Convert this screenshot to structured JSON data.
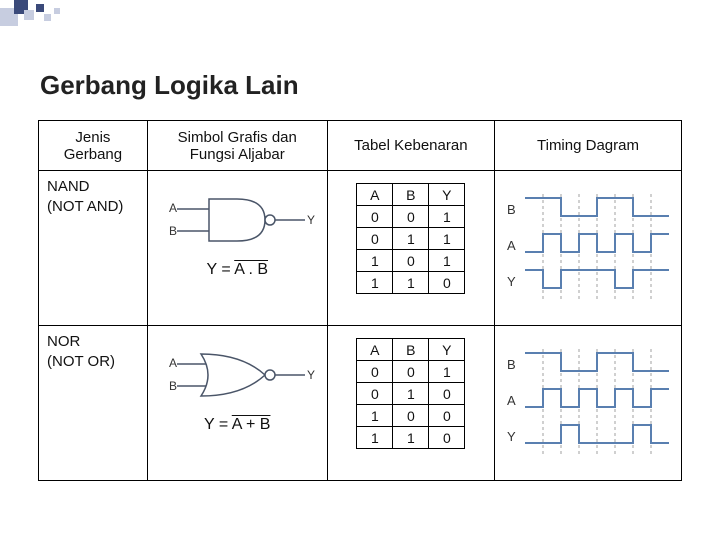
{
  "title": "Gerbang Logika Lain",
  "columns": {
    "jenis": "Jenis Gerbang",
    "simbol": "Simbol Grafis dan Fungsi Aljabar",
    "tabel": "Tabel Kebenaran",
    "timing": "Timing Dagram"
  },
  "rows": [
    {
      "name": "NAND",
      "subname": "(NOT AND)",
      "gate_shape": "nand",
      "formula_lhs": "Y = ",
      "formula_overline": "A . B",
      "input_labels": [
        "A",
        "B"
      ],
      "output_label": "Y",
      "truth": {
        "headers": [
          "A",
          "B",
          "Y"
        ],
        "rows": [
          [
            "0",
            "0",
            "1"
          ],
          [
            "0",
            "1",
            "1"
          ],
          [
            "1",
            "0",
            "1"
          ],
          [
            "1",
            "1",
            "0"
          ]
        ]
      },
      "timing": {
        "signals": [
          "B",
          "A",
          "Y"
        ],
        "line_color": "#597fb0",
        "dash_color": "#a0a0a0",
        "waveforms": {
          "B": [
            1,
            1,
            0,
            0,
            1,
            1,
            0,
            0
          ],
          "A": [
            0,
            1,
            0,
            1,
            0,
            1,
            0,
            1
          ],
          "Y": [
            1,
            0,
            1,
            1,
            1,
            0,
            1,
            1
          ]
        }
      }
    },
    {
      "name": "NOR",
      "subname": "(NOT OR)",
      "gate_shape": "nor",
      "formula_lhs": "Y = ",
      "formula_overline": "A + B",
      "input_labels": [
        "A",
        "B"
      ],
      "output_label": "Y",
      "truth": {
        "headers": [
          "A",
          "B",
          "Y"
        ],
        "rows": [
          [
            "0",
            "0",
            "1"
          ],
          [
            "0",
            "1",
            "0"
          ],
          [
            "1",
            "0",
            "0"
          ],
          [
            "1",
            "1",
            "0"
          ]
        ]
      },
      "timing": {
        "signals": [
          "B",
          "A",
          "Y"
        ],
        "line_color": "#597fb0",
        "dash_color": "#a0a0a0",
        "waveforms": {
          "B": [
            1,
            1,
            0,
            0,
            1,
            1,
            0,
            0
          ],
          "A": [
            0,
            1,
            0,
            1,
            0,
            1,
            0,
            1
          ],
          "Y": [
            0,
            0,
            1,
            0,
            0,
            0,
            1,
            0
          ]
        }
      }
    }
  ],
  "colors": {
    "deco_light": "#c7cde0",
    "deco_dark": "#3b4a7a",
    "text": "#111111",
    "border": "#000000",
    "gate_stroke": "#4a5568"
  }
}
